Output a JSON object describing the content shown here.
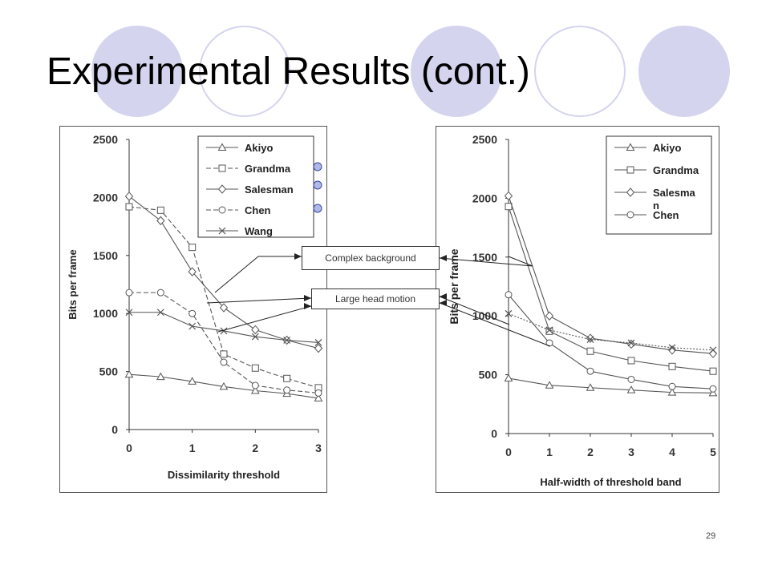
{
  "slide": {
    "title": "Experimental Results (cont.)",
    "page_number": "29",
    "callouts": {
      "complex": "Complex background",
      "large": "Large head motion"
    },
    "accent_color": "#d4d4ee"
  },
  "chart_data": [
    {
      "type": "line",
      "xlabel": "Dissimilarity threshold",
      "ylabel": "Bits per frame",
      "xlim": [
        0,
        3
      ],
      "ylim": [
        0,
        2500
      ],
      "xticks": [
        "0",
        "1",
        "2",
        "3"
      ],
      "yticks": [
        "0",
        "500",
        "1000",
        "1500",
        "2000",
        "2500"
      ],
      "legend_position": "top-right",
      "grid": false,
      "x": [
        0,
        0.5,
        1,
        1.5,
        2,
        2.5,
        3
      ],
      "series": [
        {
          "name": "Akiyo",
          "marker": "triangle",
          "dash": "solid",
          "values": [
            475,
            455,
            415,
            370,
            335,
            310,
            270
          ]
        },
        {
          "name": "Grandma",
          "marker": "square",
          "dash": "dashed",
          "values": [
            1920,
            1890,
            1570,
            650,
            530,
            440,
            360
          ]
        },
        {
          "name": "Salesman",
          "marker": "diamond",
          "dash": "solid",
          "values": [
            2010,
            1800,
            1360,
            1050,
            860,
            770,
            700
          ]
        },
        {
          "name": "Chen",
          "marker": "circle",
          "dash": "dashed",
          "values": [
            1180,
            1180,
            1000,
            580,
            380,
            340,
            315
          ]
        },
        {
          "name": "Wang",
          "marker": "x",
          "dash": "solid",
          "values": [
            1010,
            1010,
            890,
            850,
            800,
            770,
            750
          ]
        }
      ]
    },
    {
      "type": "line",
      "xlabel": "Half-width of threshold band",
      "ylabel": "Bits per frame",
      "xlim": [
        0,
        5
      ],
      "ylim": [
        0,
        2500
      ],
      "xticks": [
        "0",
        "1",
        "2",
        "3",
        "4",
        "5"
      ],
      "yticks": [
        "0",
        "500",
        "1000",
        "1500",
        "2000",
        "2500"
      ],
      "legend_position": "top-right",
      "grid": false,
      "x": [
        0,
        1,
        2,
        3,
        4,
        5
      ],
      "series": [
        {
          "name": "Akiyo",
          "marker": "triangle",
          "dash": "solid",
          "values": [
            470,
            410,
            390,
            370,
            350,
            345
          ]
        },
        {
          "name": "Grandma",
          "marker": "square",
          "dash": "solid",
          "values": [
            1930,
            870,
            700,
            620,
            570,
            530
          ]
        },
        {
          "name": "Salesma\nn",
          "marker": "diamond",
          "dash": "solid",
          "values": [
            2020,
            1000,
            810,
            760,
            710,
            680
          ]
        },
        {
          "name": "Chen",
          "marker": "circle",
          "dash": "solid",
          "values": [
            1180,
            770,
            530,
            460,
            400,
            380
          ]
        },
        {
          "name": "",
          "marker": "x",
          "dash": "dotted",
          "values": [
            1020,
            880,
            800,
            770,
            730,
            710
          ]
        }
      ]
    }
  ]
}
